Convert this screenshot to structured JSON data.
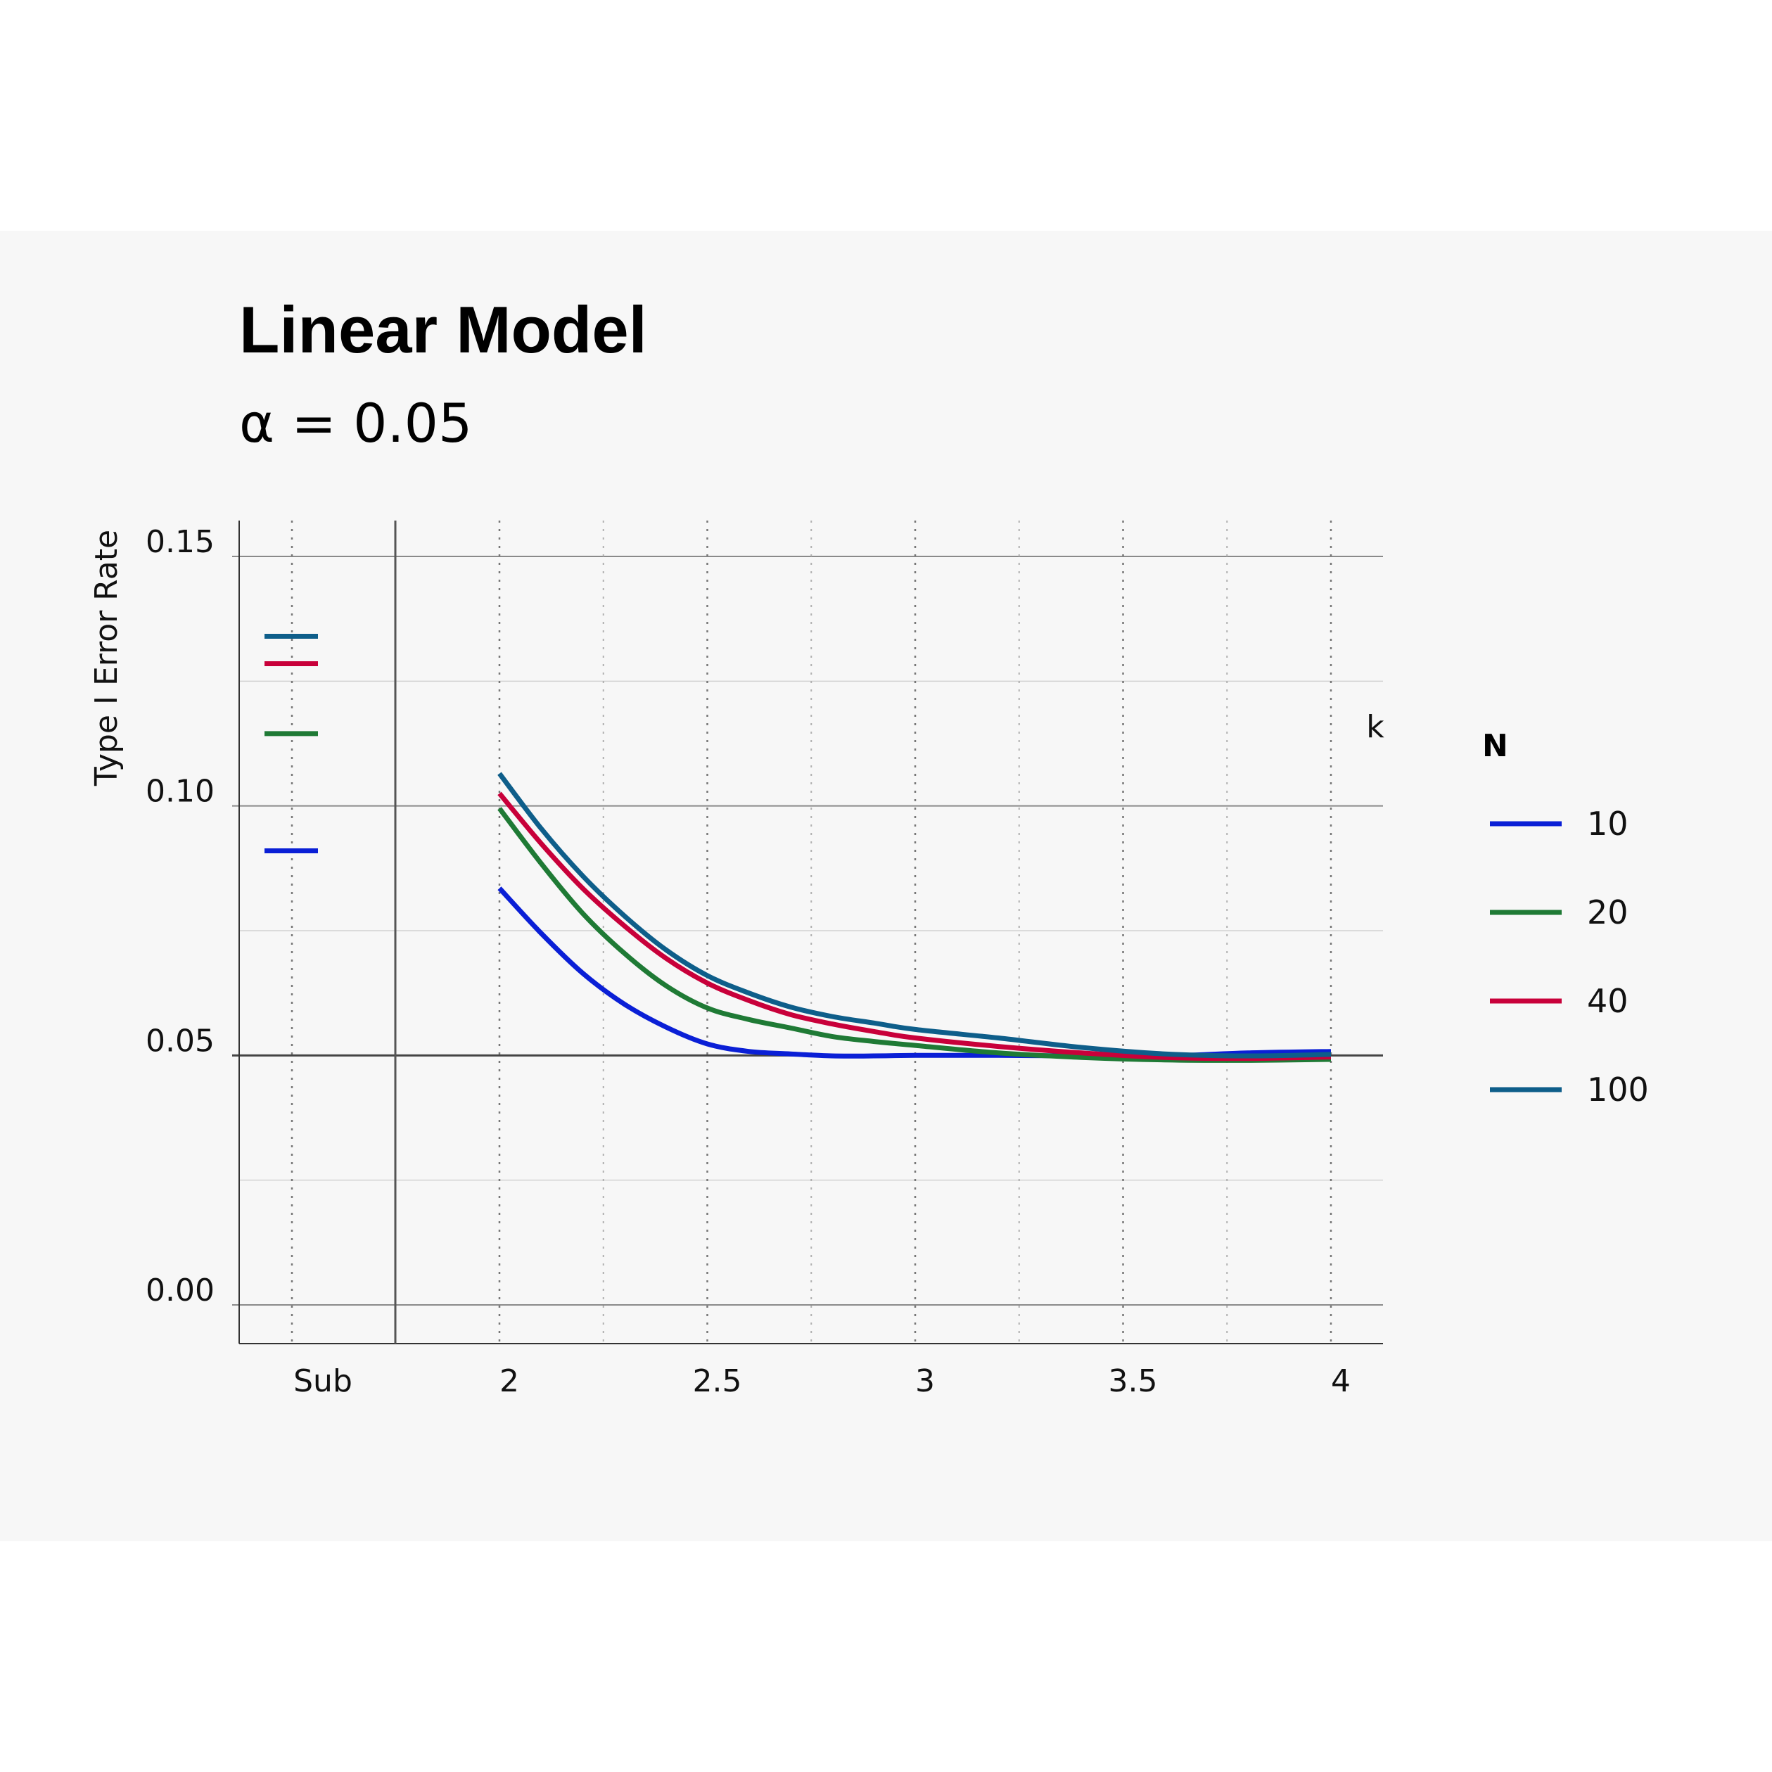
{
  "chart_data": {
    "type": "line",
    "title": "Linear Model",
    "subtitle": "α = 0.05",
    "xlabel": "k",
    "ylabel": "Type I Error Rate",
    "xlim": [
      1.68,
      4.12
    ],
    "ylim": [
      -0.015,
      0.1565
    ],
    "x_ticks": [
      "2",
      "2.5",
      "3",
      "3.5",
      "4"
    ],
    "y_ticks": [
      "0.00",
      "0.05",
      "0.10",
      "0.15"
    ],
    "sub_label": "Sub",
    "reference_line": 0.05,
    "legend": {
      "title": "N",
      "position": "right"
    },
    "grid": true,
    "series": [
      {
        "name": "10",
        "color": "#0a1fd6",
        "sub_value": 0.091,
        "x": [
          2.0,
          2.1,
          2.2,
          2.3,
          2.4,
          2.5,
          2.6,
          2.7,
          2.8,
          2.9,
          3.0,
          3.2,
          3.4,
          3.6,
          3.8,
          4.0
        ],
        "y": [
          0.0835,
          0.0745,
          0.0665,
          0.0603,
          0.0557,
          0.0523,
          0.0508,
          0.0503,
          0.0499,
          0.0499,
          0.05,
          0.05,
          0.0499,
          0.0499,
          0.0505,
          0.0508
        ]
      },
      {
        "name": "20",
        "color": "#1f7a35",
        "sub_value": 0.1145,
        "x": [
          2.0,
          2.1,
          2.2,
          2.3,
          2.4,
          2.5,
          2.6,
          2.7,
          2.8,
          2.9,
          3.0,
          3.2,
          3.4,
          3.6,
          3.8,
          4.0
        ],
        "y": [
          0.0995,
          0.0885,
          0.0785,
          0.0705,
          0.064,
          0.0595,
          0.0572,
          0.0555,
          0.0538,
          0.0528,
          0.052,
          0.0505,
          0.0496,
          0.0491,
          0.049,
          0.0492
        ]
      },
      {
        "name": "40",
        "color": "#c8003a",
        "sub_value": 0.1285,
        "x": [
          2.0,
          2.1,
          2.2,
          2.3,
          2.4,
          2.5,
          2.6,
          2.7,
          2.8,
          2.9,
          3.0,
          3.2,
          3.4,
          3.6,
          3.8,
          4.0
        ],
        "y": [
          0.1025,
          0.0925,
          0.0835,
          0.076,
          0.0695,
          0.0645,
          0.061,
          0.0582,
          0.0563,
          0.0548,
          0.0535,
          0.0518,
          0.0505,
          0.0496,
          0.0494,
          0.0497
        ]
      },
      {
        "name": "100",
        "color": "#0e5e8a",
        "sub_value": 0.134,
        "x": [
          2.0,
          2.1,
          2.2,
          2.3,
          2.4,
          2.5,
          2.6,
          2.7,
          2.8,
          2.9,
          3.0,
          3.2,
          3.4,
          3.6,
          3.8,
          4.0
        ],
        "y": [
          0.1065,
          0.0955,
          0.086,
          0.078,
          0.0712,
          0.066,
          0.0625,
          0.0597,
          0.0578,
          0.0565,
          0.0552,
          0.0535,
          0.0516,
          0.0503,
          0.0499,
          0.0502
        ]
      }
    ]
  }
}
